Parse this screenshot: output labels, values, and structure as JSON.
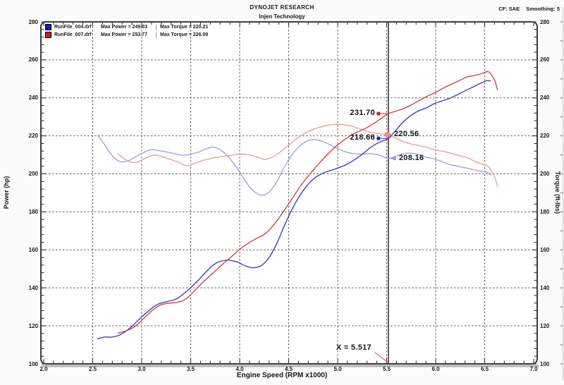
{
  "header": {
    "title": "DYNOJET RESEARCH",
    "subtitle": "Injen Technology",
    "correction_label": "CF: SAE",
    "smoothing_label": "Smoothing: 5"
  },
  "legend": {
    "runs": [
      {
        "file": "RunFile_004.drf",
        "max_power": "Max Power = 249.03",
        "max_torque": "Max Torque = 220.21",
        "color": "#1414cc"
      },
      {
        "file": "RunFile_007.drf",
        "max_power": "Max Power = 253.77",
        "max_torque": "Max Torque = 226.09",
        "color": "#e01414"
      }
    ]
  },
  "axes": {
    "x": {
      "title": "Engine Speed (RPM x1000)",
      "min": 2.0,
      "max": 7.0,
      "major_step": 0.5,
      "minor_step": 0.1,
      "tick_labels": [
        "2.0",
        "2.5",
        "3.0",
        "3.5",
        "4.0",
        "4.5",
        "5.0",
        "5.5",
        "6.0",
        "6.5",
        "7.0"
      ]
    },
    "y_left": {
      "title": "Power (hp)",
      "min": 100,
      "max": 280,
      "major_step": 20,
      "minor_step": 4,
      "tick_labels": [
        "280",
        "260",
        "240",
        "220",
        "200",
        "180",
        "160",
        "140",
        "120",
        "100"
      ]
    },
    "y_right": {
      "title": "Torque (ft-lbs)",
      "min": 100,
      "max": 280,
      "major_step": 20,
      "minor_step": 4,
      "tick_labels": [
        "280",
        "260",
        "240",
        "220",
        "200",
        "180",
        "160",
        "140",
        "120",
        "100"
      ]
    }
  },
  "cursor": {
    "x_value": 5.517,
    "x_label": "X = 5.517",
    "readouts": [
      {
        "id": "power-red",
        "label": "231.70",
        "value": 231.7,
        "side": "left",
        "color": "#d92525"
      },
      {
        "id": "power-blue",
        "label": "218.66",
        "value": 218.66,
        "side": "left",
        "color": "#2525d9"
      },
      {
        "id": "torque-red",
        "label": "220.56",
        "value": 220.56,
        "side": "right",
        "color": "#f29090"
      },
      {
        "id": "torque-blue",
        "label": "208.16",
        "value": 208.16,
        "side": "right",
        "color": "#9a9aea"
      }
    ]
  },
  "chart_data": {
    "type": "line",
    "title": "DYNOJET RESEARCH - Injen Technology",
    "xlabel": "Engine Speed (RPM x1000)",
    "ylabel_left": "Power (hp)",
    "ylabel_right": "Torque (ft-lbs)",
    "xlim": [
      2.0,
      7.0
    ],
    "ylim": [
      100,
      280
    ],
    "grid": "dashed",
    "legend_position": "top-left",
    "cursor_x": 5.517,
    "series": [
      {
        "name": "RunFile_004.drf Power",
        "unit": "hp",
        "axis": "left",
        "color": "#3a3ac2",
        "x": [
          2.55,
          2.62,
          2.7,
          2.79,
          2.89,
          2.99,
          3.09,
          3.18,
          3.34,
          3.42,
          3.5,
          3.58,
          3.66,
          3.74,
          3.82,
          3.9,
          3.98,
          4.06,
          4.14,
          4.22,
          4.3,
          4.38,
          4.46,
          4.54,
          4.62,
          4.7,
          4.78,
          4.86,
          4.94,
          5.02,
          5.1,
          5.18,
          5.26,
          5.34,
          5.42,
          5.517,
          5.58,
          5.66,
          5.74,
          5.82,
          5.9,
          5.98,
          6.06,
          6.14,
          6.22,
          6.3,
          6.38,
          6.46,
          6.52,
          6.56
        ],
        "y": [
          113.2,
          114.1,
          114.1,
          115.5,
          119.3,
          124.2,
          128.7,
          131.7,
          133.9,
          136.6,
          140.1,
          144.2,
          148.6,
          152.4,
          154.2,
          154.5,
          153.5,
          151.5,
          150.6,
          151.7,
          156.0,
          163.5,
          173.2,
          182.0,
          189.1,
          194.6,
          198.4,
          200.6,
          202.0,
          203.4,
          205.2,
          207.7,
          210.7,
          214.1,
          216.5,
          218.66,
          222.1,
          226.9,
          230.5,
          233.0,
          234.6,
          236.8,
          238.3,
          239.7,
          241.6,
          243.7,
          245.7,
          247.7,
          249.0,
          248.9
        ]
      },
      {
        "name": "RunFile_004.drf Torque",
        "unit": "ft-lbs",
        "axis": "right",
        "color": "#9f9fe4",
        "x": [
          2.55,
          2.62,
          2.7,
          2.79,
          2.89,
          2.99,
          3.09,
          3.18,
          3.34,
          3.42,
          3.5,
          3.58,
          3.66,
          3.74,
          3.82,
          3.9,
          3.98,
          4.06,
          4.14,
          4.22,
          4.3,
          4.38,
          4.46,
          4.54,
          4.62,
          4.7,
          4.78,
          4.86,
          4.94,
          5.02,
          5.1,
          5.18,
          5.26,
          5.34,
          5.42,
          5.517,
          5.58,
          5.66,
          5.74,
          5.82,
          5.9,
          5.98,
          6.06,
          6.14,
          6.22,
          6.3,
          6.38,
          6.46,
          6.52,
          6.56
        ],
        "y": [
          220.2,
          215.5,
          209.5,
          206.3,
          207.5,
          210.5,
          212.6,
          212.2,
          210.6,
          209.8,
          210.3,
          211.5,
          213.2,
          214.0,
          212.0,
          208.0,
          202.5,
          196.0,
          191.0,
          188.8,
          190.5,
          196.0,
          204.0,
          210.5,
          215.0,
          217.5,
          218.0,
          216.8,
          214.8,
          212.8,
          211.3,
          210.6,
          210.4,
          210.6,
          209.8,
          208.16,
          209.0,
          210.5,
          210.9,
          210.3,
          208.8,
          208.0,
          206.5,
          205.0,
          204.0,
          203.2,
          202.3,
          201.4,
          200.9,
          199.3
        ]
      },
      {
        "name": "RunFile_007.drf Power",
        "unit": "hp",
        "axis": "left",
        "color": "#cc4040",
        "x": [
          2.76,
          2.85,
          2.94,
          3.03,
          3.12,
          3.21,
          3.38,
          3.46,
          3.54,
          3.62,
          3.7,
          3.78,
          3.86,
          3.94,
          4.02,
          4.1,
          4.18,
          4.26,
          4.34,
          4.42,
          4.5,
          4.58,
          4.66,
          4.74,
          4.82,
          4.9,
          4.98,
          5.06,
          5.14,
          5.22,
          5.3,
          5.38,
          5.46,
          5.517,
          5.6,
          5.68,
          5.76,
          5.84,
          5.92,
          6.0,
          6.08,
          6.16,
          6.24,
          6.32,
          6.4,
          6.48,
          6.54,
          6.6,
          6.63
        ],
        "y": [
          116.2,
          117.5,
          120.0,
          124.4,
          128.6,
          131.3,
          132.6,
          134.5,
          138.5,
          142.7,
          146.5,
          150.3,
          153.9,
          157.5,
          161.1,
          163.9,
          166.2,
          168.4,
          172.7,
          178.2,
          184.2,
          190.5,
          196.3,
          201.4,
          206.1,
          210.4,
          214.4,
          217.6,
          220.4,
          222.4,
          224.4,
          226.9,
          229.8,
          231.7,
          233.1,
          234.5,
          236.5,
          238.8,
          241.0,
          242.9,
          245.2,
          247.2,
          249.0,
          251.0,
          251.8,
          252.9,
          253.7,
          249.4,
          244.3
        ]
      },
      {
        "name": "RunFile_007.drf Torque",
        "unit": "ft-lbs",
        "axis": "right",
        "color": "#e89f9f",
        "x": [
          2.76,
          2.85,
          2.94,
          3.03,
          3.12,
          3.21,
          3.38,
          3.46,
          3.54,
          3.62,
          3.7,
          3.78,
          3.86,
          3.94,
          4.02,
          4.1,
          4.18,
          4.26,
          4.34,
          4.42,
          4.5,
          4.58,
          4.66,
          4.74,
          4.82,
          4.9,
          4.98,
          5.06,
          5.14,
          5.22,
          5.3,
          5.38,
          5.46,
          5.517,
          5.6,
          5.68,
          5.76,
          5.84,
          5.92,
          6.0,
          6.08,
          6.16,
          6.24,
          6.32,
          6.4,
          6.48,
          6.54,
          6.6,
          6.63
        ],
        "y": [
          210.5,
          207.0,
          206.0,
          208.0,
          209.8,
          209.0,
          206.0,
          204.2,
          205.5,
          207.0,
          208.0,
          208.8,
          209.4,
          210.0,
          210.5,
          210.0,
          208.8,
          207.6,
          209.0,
          211.8,
          215.0,
          218.5,
          221.2,
          223.2,
          224.6,
          225.5,
          226.1,
          225.9,
          225.2,
          223.8,
          222.4,
          221.5,
          221.0,
          220.56,
          218.6,
          216.8,
          215.6,
          214.8,
          213.8,
          212.6,
          211.8,
          210.8,
          209.6,
          208.6,
          206.6,
          205.0,
          203.6,
          198.5,
          193.5
        ]
      }
    ]
  }
}
